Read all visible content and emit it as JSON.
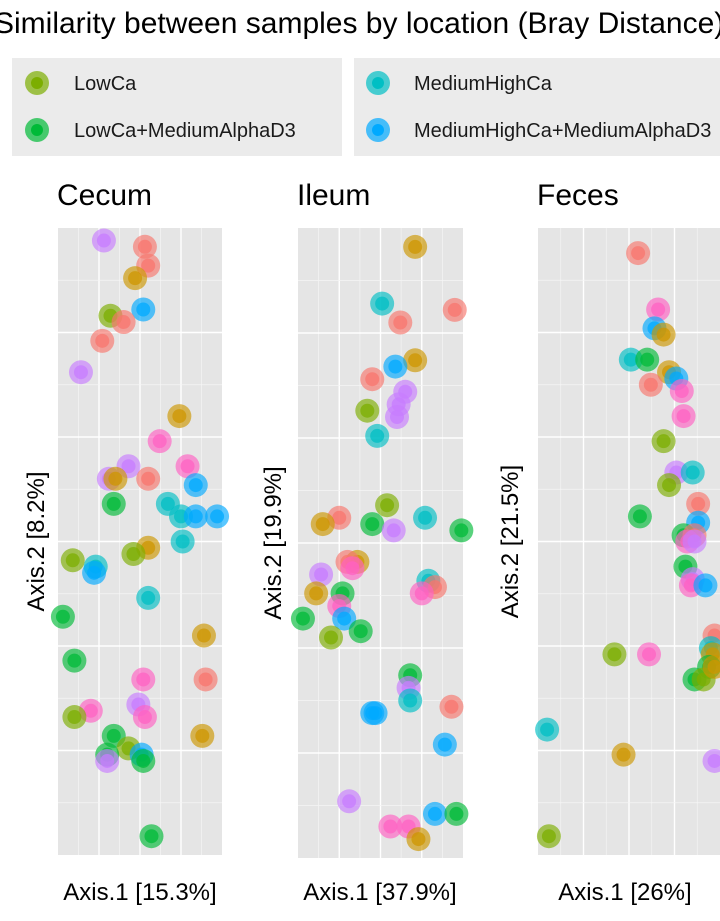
{
  "chart_data": {
    "type": "scatter",
    "title": "Similarity between samples by location (Bray Distance)",
    "legend": {
      "placement": "top",
      "groups": [
        {
          "name": "LowCa",
          "color": "#7CAE00"
        },
        {
          "name": "MediumHighCa",
          "color": "#00BFC4"
        },
        {
          "name": "LowCa+MediumAlphaD3",
          "color": "#00BA38"
        },
        {
          "name": "MediumHighCa+MediumAlphaD3",
          "color": "#00A9FF"
        }
      ]
    },
    "extra_colors": {
      "orange": "#CD9600",
      "red": "#F8766D",
      "purple": "#C77CFF",
      "pink": "#FF61C3"
    },
    "grid": true,
    "panels": [
      {
        "name": "Cecum",
        "xlabel": "Axis.1   [15.3%]",
        "ylabel": "Axis.2   [8.2%]",
        "xlim": [
          0,
          1
        ],
        "ylim": [
          0,
          1
        ],
        "points": [
          {
            "x": 0.28,
            "y": 0.98,
            "c": "#C77CFF"
          },
          {
            "x": 0.53,
            "y": 0.97,
            "c": "#F8766D"
          },
          {
            "x": 0.55,
            "y": 0.94,
            "c": "#F8766D"
          },
          {
            "x": 0.47,
            "y": 0.92,
            "c": "#CD9600"
          },
          {
            "x": 0.52,
            "y": 0.87,
            "c": "#00A9FF"
          },
          {
            "x": 0.32,
            "y": 0.86,
            "c": "#7CAE00"
          },
          {
            "x": 0.4,
            "y": 0.85,
            "c": "#F8766D"
          },
          {
            "x": 0.27,
            "y": 0.82,
            "c": "#F8766D"
          },
          {
            "x": 0.14,
            "y": 0.77,
            "c": "#C77CFF"
          },
          {
            "x": 0.74,
            "y": 0.7,
            "c": "#CD9600"
          },
          {
            "x": 0.62,
            "y": 0.66,
            "c": "#FF61C3"
          },
          {
            "x": 0.79,
            "y": 0.62,
            "c": "#FF61C3"
          },
          {
            "x": 0.43,
            "y": 0.62,
            "c": "#C77CFF"
          },
          {
            "x": 0.31,
            "y": 0.6,
            "c": "#C77CFF"
          },
          {
            "x": 0.35,
            "y": 0.6,
            "c": "#CD9600"
          },
          {
            "x": 0.55,
            "y": 0.6,
            "c": "#F8766D"
          },
          {
            "x": 0.84,
            "y": 0.59,
            "c": "#00A9FF"
          },
          {
            "x": 0.34,
            "y": 0.56,
            "c": "#00BA38"
          },
          {
            "x": 0.67,
            "y": 0.56,
            "c": "#00BFC4"
          },
          {
            "x": 0.75,
            "y": 0.54,
            "c": "#00BFC4"
          },
          {
            "x": 0.84,
            "y": 0.54,
            "c": "#00A9FF"
          },
          {
            "x": 0.97,
            "y": 0.54,
            "c": "#00A9FF"
          },
          {
            "x": 0.76,
            "y": 0.5,
            "c": "#00BFC4"
          },
          {
            "x": 0.55,
            "y": 0.49,
            "c": "#CD9600"
          },
          {
            "x": 0.46,
            "y": 0.48,
            "c": "#7CAE00"
          },
          {
            "x": 0.09,
            "y": 0.47,
            "c": "#7CAE00"
          },
          {
            "x": 0.23,
            "y": 0.46,
            "c": "#00BFC4"
          },
          {
            "x": 0.22,
            "y": 0.45,
            "c": "#00A9FF"
          },
          {
            "x": 0.55,
            "y": 0.41,
            "c": "#00BFC4"
          },
          {
            "x": 0.03,
            "y": 0.38,
            "c": "#00BA38"
          },
          {
            "x": 0.89,
            "y": 0.35,
            "c": "#CD9600"
          },
          {
            "x": 0.1,
            "y": 0.31,
            "c": "#00BA38"
          },
          {
            "x": 0.52,
            "y": 0.28,
            "c": "#FF61C3"
          },
          {
            "x": 0.9,
            "y": 0.28,
            "c": "#F8766D"
          },
          {
            "x": 0.49,
            "y": 0.24,
            "c": "#C77CFF"
          },
          {
            "x": 0.2,
            "y": 0.23,
            "c": "#FF61C3"
          },
          {
            "x": 0.1,
            "y": 0.22,
            "c": "#7CAE00"
          },
          {
            "x": 0.53,
            "y": 0.22,
            "c": "#FF61C3"
          },
          {
            "x": 0.34,
            "y": 0.19,
            "c": "#00BA38"
          },
          {
            "x": 0.88,
            "y": 0.19,
            "c": "#CD9600"
          },
          {
            "x": 0.43,
            "y": 0.17,
            "c": "#7CAE00"
          },
          {
            "x": 0.51,
            "y": 0.16,
            "c": "#00A9FF"
          },
          {
            "x": 0.3,
            "y": 0.16,
            "c": "#00BA38"
          },
          {
            "x": 0.52,
            "y": 0.15,
            "c": "#00BA38"
          },
          {
            "x": 0.3,
            "y": 0.15,
            "c": "#C77CFF"
          },
          {
            "x": 0.57,
            "y": 0.03,
            "c": "#00BA38"
          }
        ]
      },
      {
        "name": "Ileum",
        "xlabel": "Axis.1   [37.9%]",
        "ylabel": "Axis.2   [19.9%]",
        "xlim": [
          0,
          1
        ],
        "ylim": [
          0,
          1
        ],
        "points": [
          {
            "x": 0.71,
            "y": 0.97,
            "c": "#CD9600"
          },
          {
            "x": 0.51,
            "y": 0.88,
            "c": "#00BFC4"
          },
          {
            "x": 0.95,
            "y": 0.87,
            "c": "#F8766D"
          },
          {
            "x": 0.62,
            "y": 0.85,
            "c": "#F8766D"
          },
          {
            "x": 0.71,
            "y": 0.79,
            "c": "#CD9600"
          },
          {
            "x": 0.59,
            "y": 0.78,
            "c": "#00A9FF"
          },
          {
            "x": 0.45,
            "y": 0.76,
            "c": "#F8766D"
          },
          {
            "x": 0.65,
            "y": 0.74,
            "c": "#C77CFF"
          },
          {
            "x": 0.61,
            "y": 0.72,
            "c": "#C77CFF"
          },
          {
            "x": 0.42,
            "y": 0.71,
            "c": "#7CAE00"
          },
          {
            "x": 0.6,
            "y": 0.7,
            "c": "#C77CFF"
          },
          {
            "x": 0.48,
            "y": 0.67,
            "c": "#00BFC4"
          },
          {
            "x": 0.54,
            "y": 0.56,
            "c": "#7CAE00"
          },
          {
            "x": 0.25,
            "y": 0.54,
            "c": "#F8766D"
          },
          {
            "x": 0.15,
            "y": 0.53,
            "c": "#CD9600"
          },
          {
            "x": 0.45,
            "y": 0.53,
            "c": "#00BA38"
          },
          {
            "x": 0.77,
            "y": 0.54,
            "c": "#00BFC4"
          },
          {
            "x": 0.58,
            "y": 0.52,
            "c": "#C77CFF"
          },
          {
            "x": 0.99,
            "y": 0.52,
            "c": "#00BA38"
          },
          {
            "x": 0.36,
            "y": 0.47,
            "c": "#CD9600"
          },
          {
            "x": 0.3,
            "y": 0.47,
            "c": "#F8766D"
          },
          {
            "x": 0.33,
            "y": 0.46,
            "c": "#FF61C3"
          },
          {
            "x": 0.14,
            "y": 0.45,
            "c": "#C77CFF"
          },
          {
            "x": 0.79,
            "y": 0.44,
            "c": "#00BFC4"
          },
          {
            "x": 0.83,
            "y": 0.43,
            "c": "#F8766D"
          },
          {
            "x": 0.75,
            "y": 0.42,
            "c": "#FF61C3"
          },
          {
            "x": 0.11,
            "y": 0.42,
            "c": "#CD9600"
          },
          {
            "x": 0.27,
            "y": 0.42,
            "c": "#00BA38"
          },
          {
            "x": 0.25,
            "y": 0.4,
            "c": "#FF61C3"
          },
          {
            "x": 0.28,
            "y": 0.38,
            "c": "#00A9FF"
          },
          {
            "x": 0.03,
            "y": 0.38,
            "c": "#00BA38"
          },
          {
            "x": 0.38,
            "y": 0.36,
            "c": "#00BA38"
          },
          {
            "x": 0.2,
            "y": 0.35,
            "c": "#7CAE00"
          },
          {
            "x": 0.68,
            "y": 0.29,
            "c": "#00BA38"
          },
          {
            "x": 0.67,
            "y": 0.27,
            "c": "#C77CFF"
          },
          {
            "x": 0.68,
            "y": 0.25,
            "c": "#00BFC4"
          },
          {
            "x": 0.45,
            "y": 0.23,
            "c": "#00A9FF"
          },
          {
            "x": 0.47,
            "y": 0.23,
            "c": "#00A9FF"
          },
          {
            "x": 0.93,
            "y": 0.24,
            "c": "#F8766D"
          },
          {
            "x": 0.89,
            "y": 0.18,
            "c": "#00A9FF"
          },
          {
            "x": 0.31,
            "y": 0.09,
            "c": "#C77CFF"
          },
          {
            "x": 0.83,
            "y": 0.07,
            "c": "#00A9FF"
          },
          {
            "x": 0.96,
            "y": 0.07,
            "c": "#00BA38"
          },
          {
            "x": 0.56,
            "y": 0.05,
            "c": "#FF61C3"
          },
          {
            "x": 0.67,
            "y": 0.05,
            "c": "#FF61C3"
          },
          {
            "x": 0.73,
            "y": 0.03,
            "c": "#CD9600"
          }
        ]
      },
      {
        "name": "Feces",
        "xlabel": "Axis.1   [26%]",
        "ylabel": "Axis.2   [21.5%]",
        "xlim": [
          0,
          1
        ],
        "ylim": [
          0,
          1
        ],
        "points": [
          {
            "x": 0.55,
            "y": 0.96,
            "c": "#F8766D"
          },
          {
            "x": 0.66,
            "y": 0.87,
            "c": "#FF61C3"
          },
          {
            "x": 0.64,
            "y": 0.84,
            "c": "#00A9FF"
          },
          {
            "x": 0.69,
            "y": 0.83,
            "c": "#CD9600"
          },
          {
            "x": 0.51,
            "y": 0.79,
            "c": "#00BFC4"
          },
          {
            "x": 0.6,
            "y": 0.79,
            "c": "#00BA38"
          },
          {
            "x": 0.72,
            "y": 0.77,
            "c": "#CD9600"
          },
          {
            "x": 0.76,
            "y": 0.76,
            "c": "#00A9FF"
          },
          {
            "x": 0.62,
            "y": 0.75,
            "c": "#F8766D"
          },
          {
            "x": 0.79,
            "y": 0.74,
            "c": "#FF61C3"
          },
          {
            "x": 0.8,
            "y": 0.7,
            "c": "#FF61C3"
          },
          {
            "x": 0.69,
            "y": 0.66,
            "c": "#7CAE00"
          },
          {
            "x": 0.76,
            "y": 0.61,
            "c": "#C77CFF"
          },
          {
            "x": 0.85,
            "y": 0.61,
            "c": "#00BFC4"
          },
          {
            "x": 0.72,
            "y": 0.59,
            "c": "#7CAE00"
          },
          {
            "x": 0.88,
            "y": 0.56,
            "c": "#F8766D"
          },
          {
            "x": 0.56,
            "y": 0.54,
            "c": "#00BA38"
          },
          {
            "x": 0.88,
            "y": 0.53,
            "c": "#00A9FF"
          },
          {
            "x": 0.8,
            "y": 0.51,
            "c": "#00BA38"
          },
          {
            "x": 0.86,
            "y": 0.51,
            "c": "#F8766D"
          },
          {
            "x": 0.82,
            "y": 0.5,
            "c": "#FF61C3"
          },
          {
            "x": 0.86,
            "y": 0.5,
            "c": "#C77CFF"
          },
          {
            "x": 0.81,
            "y": 0.46,
            "c": "#00BA38"
          },
          {
            "x": 0.85,
            "y": 0.44,
            "c": "#C77CFF"
          },
          {
            "x": 0.84,
            "y": 0.43,
            "c": "#FF61C3"
          },
          {
            "x": 0.92,
            "y": 0.43,
            "c": "#00A9FF"
          },
          {
            "x": 0.97,
            "y": 0.35,
            "c": "#F8766D"
          },
          {
            "x": 0.95,
            "y": 0.33,
            "c": "#00BFC4"
          },
          {
            "x": 0.42,
            "y": 0.32,
            "c": "#7CAE00"
          },
          {
            "x": 0.61,
            "y": 0.32,
            "c": "#FF61C3"
          },
          {
            "x": 0.96,
            "y": 0.32,
            "c": "#CD9600"
          },
          {
            "x": 0.94,
            "y": 0.3,
            "c": "#00BA38"
          },
          {
            "x": 0.86,
            "y": 0.28,
            "c": "#00BA38"
          },
          {
            "x": 0.91,
            "y": 0.28,
            "c": "#7CAE00"
          },
          {
            "x": 0.97,
            "y": 0.3,
            "c": "#CD9600"
          },
          {
            "x": 0.05,
            "y": 0.2,
            "c": "#00BFC4"
          },
          {
            "x": 0.47,
            "y": 0.16,
            "c": "#CD9600"
          },
          {
            "x": 0.97,
            "y": 0.15,
            "c": "#C77CFF"
          },
          {
            "x": 0.06,
            "y": 0.03,
            "c": "#7CAE00"
          }
        ]
      }
    ]
  }
}
